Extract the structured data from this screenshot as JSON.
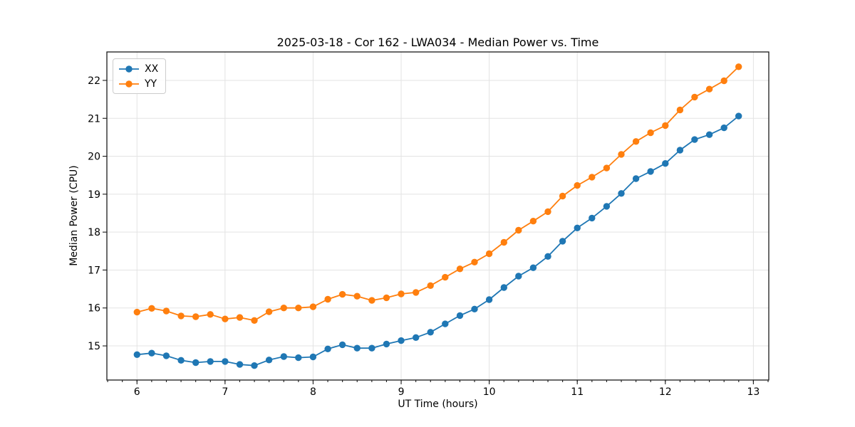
{
  "figure": {
    "title": "2025-03-18 - Cor 162 - LWA034 - Median Power vs. Time",
    "background": "#ffffff"
  },
  "colors": {
    "axis": "#1a1a1a",
    "grid": "#e3e3e3",
    "text": "#000000",
    "legend_border": "#cccccc",
    "series_xx": "#1f77b4",
    "series_yy": "#ff7f0e"
  },
  "chart_data": {
    "type": "line",
    "title": "2025-03-18 - Cor 162 - LWA034 - Median Power vs. Time",
    "xlabel": "UT Time (hours)",
    "ylabel": "Median Power (CPU)",
    "xlim": [
      5.658,
      13.175
    ],
    "ylim": [
      14.1,
      22.75
    ],
    "x_ticks": [
      6,
      7,
      8,
      9,
      10,
      11,
      12,
      13
    ],
    "y_ticks": [
      15,
      16,
      17,
      18,
      19,
      20,
      21,
      22
    ],
    "x_minor_tick_step": 0.16667,
    "grid": true,
    "legend": {
      "position": "upper-left"
    },
    "x": [
      6.0,
      6.167,
      6.333,
      6.5,
      6.667,
      6.833,
      7.0,
      7.167,
      7.333,
      7.5,
      7.667,
      7.833,
      8.0,
      8.167,
      8.333,
      8.5,
      8.667,
      8.833,
      9.0,
      9.167,
      9.333,
      9.5,
      9.667,
      9.833,
      10.0,
      10.167,
      10.333,
      10.5,
      10.667,
      10.833,
      11.0,
      11.167,
      11.333,
      11.5,
      11.667,
      11.833,
      12.0,
      12.167,
      12.333,
      12.5,
      12.667,
      12.833
    ],
    "series": [
      {
        "name": "XX",
        "color": "#1f77b4",
        "marker": "circle",
        "values": [
          14.77,
          14.81,
          14.74,
          14.62,
          14.56,
          14.59,
          14.59,
          14.51,
          14.48,
          14.63,
          14.72,
          14.69,
          14.71,
          14.92,
          15.03,
          14.94,
          14.94,
          15.05,
          15.14,
          15.22,
          15.36,
          15.58,
          15.8,
          15.97,
          16.22,
          16.54,
          16.84,
          17.06,
          17.36,
          17.76,
          18.11,
          18.37,
          18.68,
          19.02,
          19.41,
          19.6,
          19.81,
          20.16,
          20.44,
          20.57,
          20.75,
          21.06
        ]
      },
      {
        "name": "YY",
        "color": "#ff7f0e",
        "marker": "circle",
        "values": [
          15.89,
          15.99,
          15.92,
          15.79,
          15.77,
          15.83,
          15.71,
          15.75,
          15.67,
          15.9,
          16.0,
          16.0,
          16.03,
          16.23,
          16.36,
          16.31,
          16.2,
          16.27,
          16.37,
          16.41,
          16.59,
          16.81,
          17.03,
          17.21,
          17.43,
          17.73,
          18.05,
          18.29,
          18.54,
          18.95,
          19.23,
          19.45,
          19.69,
          20.05,
          20.39,
          20.62,
          20.81,
          21.22,
          21.56,
          21.77,
          21.99,
          22.36
        ]
      }
    ]
  }
}
